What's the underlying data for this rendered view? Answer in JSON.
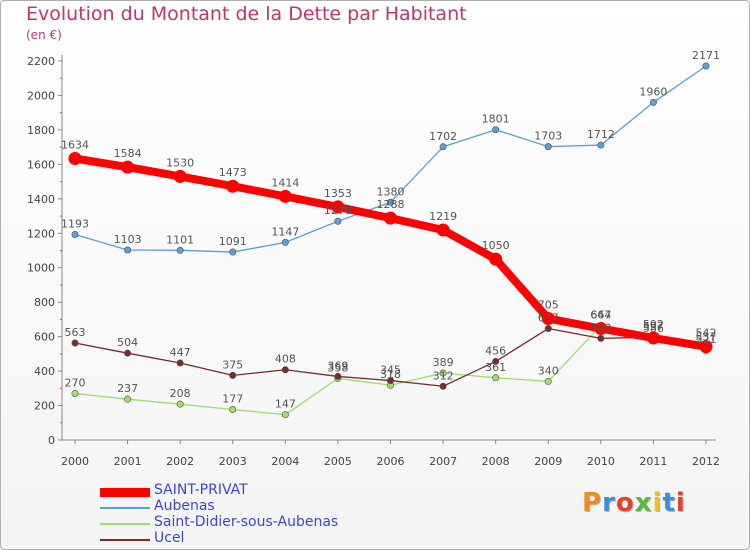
{
  "title": "Evolution du Montant de la Dette par Habitant",
  "subtitle": "(en €)",
  "logo_text": "Proxiti",
  "chart_data": {
    "type": "line",
    "x": [
      "2000",
      "2001",
      "2002",
      "2003",
      "2004",
      "2005",
      "2006",
      "2007",
      "2008",
      "2009",
      "2010",
      "2011",
      "2012"
    ],
    "ylim": [
      0,
      2200
    ],
    "yticks": [
      0,
      200,
      400,
      600,
      800,
      1000,
      1200,
      1400,
      1600,
      1800,
      2000,
      2200
    ],
    "grid": false,
    "legend_position": "bottom-left",
    "series": [
      {
        "name": "SAINT-PRIVAT",
        "color": "#ff0000",
        "values": [
          1634,
          1584,
          1530,
          1473,
          1414,
          1353,
          1288,
          1219,
          1050,
          705,
          647,
          592,
          542
        ]
      },
      {
        "name": "Aubenas",
        "color": "#5b9fd4",
        "values": [
          1193,
          1103,
          1101,
          1091,
          1147,
          1270,
          1380,
          1702,
          1801,
          1703,
          1712,
          1960,
          2171
        ]
      },
      {
        "name": "Saint-Didier-sous-Aubenas",
        "color": "#9edc6e",
        "values": [
          270,
          237,
          208,
          177,
          147,
          358,
          318,
          389,
          361,
          340,
          664,
          586,
          521
        ]
      },
      {
        "name": "Ucel",
        "color": "#7a2a2a",
        "values": [
          563,
          504,
          447,
          375,
          408,
          369,
          345,
          312,
          456,
          647,
          590,
          597,
          537
        ]
      }
    ]
  }
}
